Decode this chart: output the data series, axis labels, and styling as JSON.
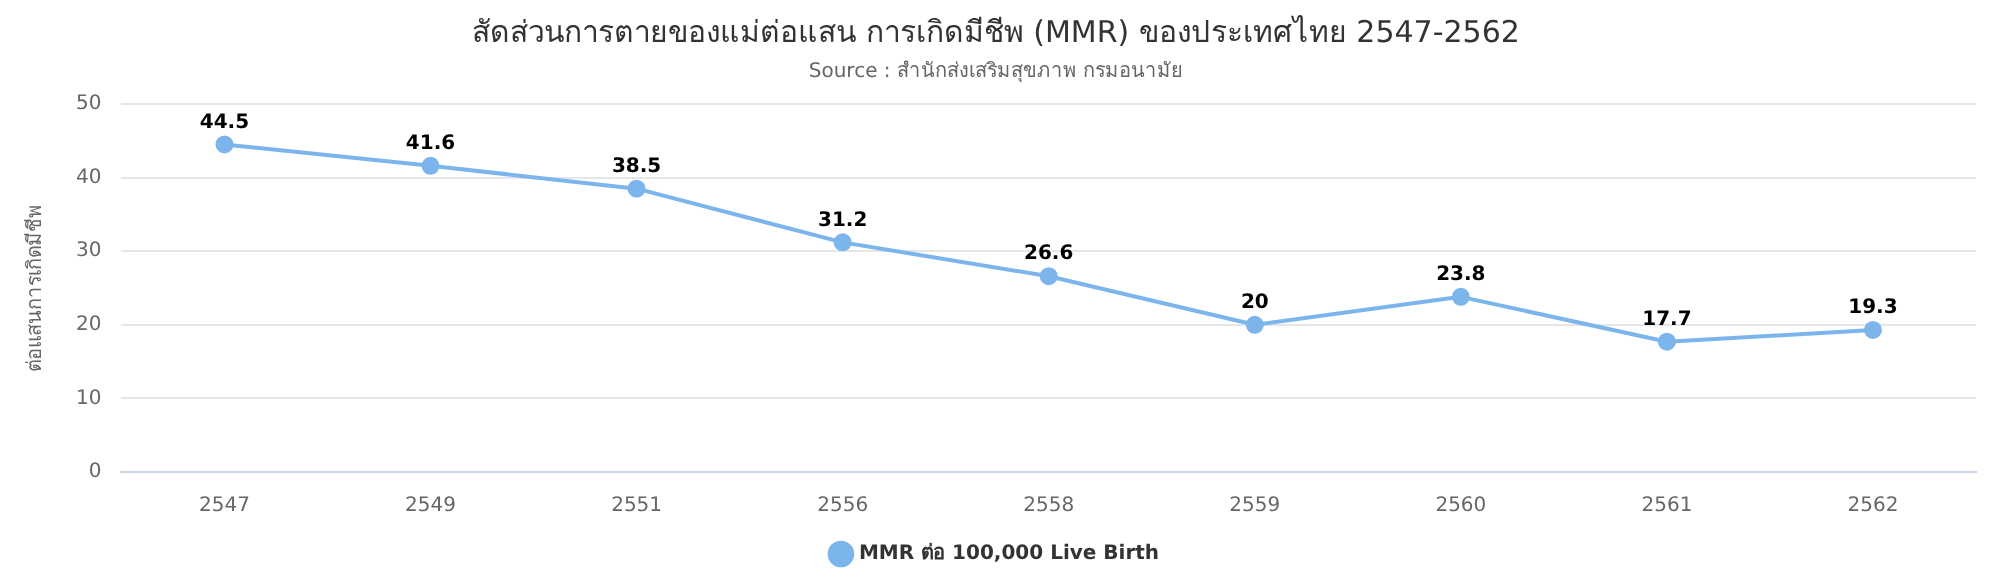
{
  "chart_data": {
    "type": "line",
    "title": "สัดส่วนการตายของแม่ต่อแสน การเกิดมีชีพ (MMR) ของประเทศไทย 2547-2562",
    "subtitle": "Source : สำนักส่งเสริมสุขภาพ กรมอนามัย",
    "ylabel": "ต่อแสนการเกิดมีชีพ",
    "categories": [
      "2547",
      "2549",
      "2551",
      "2556",
      "2558",
      "2559",
      "2560",
      "2561",
      "2562"
    ],
    "series": [
      {
        "name": "MMR ต่อ 100,000 Live Birth",
        "color": "#7cb5ec",
        "values": [
          44.5,
          41.6,
          38.5,
          31.2,
          26.6,
          20,
          23.8,
          17.7,
          19.3
        ]
      }
    ],
    "ylim": [
      0,
      50
    ],
    "yticks": [
      0,
      10,
      20,
      30,
      40,
      50
    ],
    "grid": "y",
    "legend": "bottom",
    "marker": "circle",
    "line_style": "solid",
    "data_labels": true
  }
}
